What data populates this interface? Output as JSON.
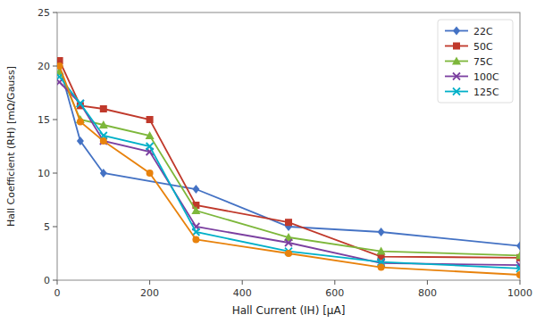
{
  "chart_data": {
    "type": "line",
    "xlabel": "Hall Current (IH) [μA]",
    "ylabel": "Hall Coefficient (RH) [mΩ/Gauss]",
    "xlim": [
      0,
      1000
    ],
    "ylim": [
      0,
      25
    ],
    "xticks": [
      0,
      200,
      400,
      600,
      800,
      1000
    ],
    "yticks": [
      0,
      5,
      10,
      15,
      20,
      25
    ],
    "grid": false,
    "legend": "upper-right",
    "series": [
      {
        "name": "22C",
        "color": "#4472C4",
        "marker": "diamond",
        "x": [
          5,
          50,
          100,
          300,
          500,
          700,
          1000
        ],
        "values": [
          20.0,
          13.0,
          10.0,
          8.5,
          5.0,
          4.5,
          3.2
        ]
      },
      {
        "name": "50C",
        "color": "#C0392B",
        "marker": "square",
        "x": [
          5,
          50,
          100,
          200,
          300,
          500,
          700,
          1000
        ],
        "values": [
          20.5,
          16.3,
          16.0,
          15.0,
          7.0,
          5.4,
          2.2,
          2.1
        ]
      },
      {
        "name": "75C",
        "color": "#7DB73B",
        "marker": "triangle",
        "x": [
          5,
          50,
          100,
          200,
          300,
          500,
          700,
          1000
        ],
        "values": [
          19.5,
          15.0,
          14.5,
          13.5,
          6.5,
          4.0,
          2.7,
          2.3
        ]
      },
      {
        "name": "100C",
        "color": "#7B3FA0",
        "marker": "x",
        "x": [
          5,
          50,
          100,
          200,
          300,
          500,
          700,
          1000
        ],
        "values": [
          18.5,
          16.5,
          13.0,
          12.0,
          5.0,
          3.5,
          1.6,
          1.4
        ]
      },
      {
        "name": "125C",
        "color": "#00B0C8",
        "marker": "x",
        "x": [
          5,
          50,
          100,
          200,
          300,
          500,
          700,
          1000
        ],
        "values": [
          19.0,
          16.5,
          13.5,
          12.5,
          4.5,
          2.7,
          1.7,
          1.1
        ]
      },
      {
        "color": "#E8820C",
        "marker": "circle",
        "x": [
          5,
          50,
          100,
          200,
          300,
          500,
          700,
          1000
        ],
        "values": [
          20.0,
          14.8,
          13.0,
          10.0,
          3.8,
          2.5,
          1.2,
          0.5
        ]
      }
    ]
  }
}
